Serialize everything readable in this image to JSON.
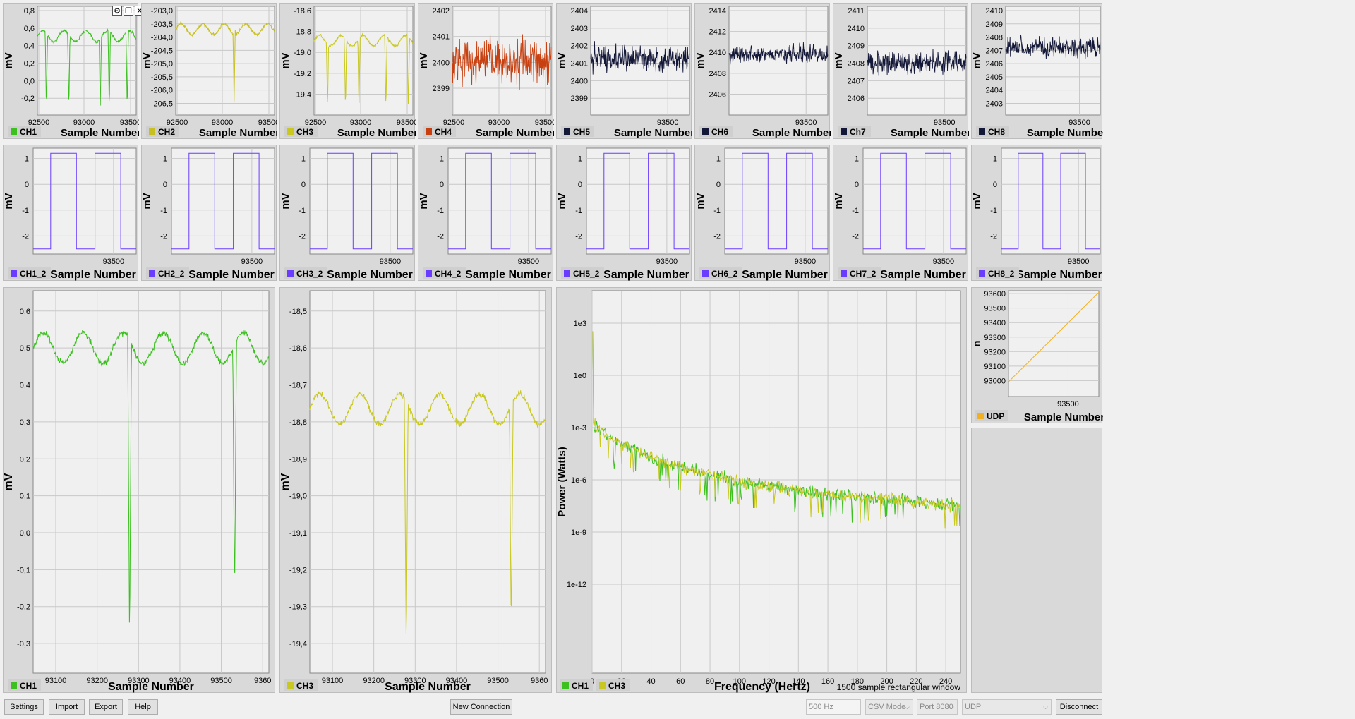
{
  "colors": {
    "CH1": "#3cc020",
    "CH2": "#c8c020",
    "CH3": "#c8c820",
    "CH4": "#c84010",
    "CH5": "#141838",
    "CH6": "#141838",
    "Ch7": "#141838",
    "CH8": "#141838",
    "square": "#6a3cff",
    "UDP": "#f0b020"
  },
  "ylabel_mv": "mV",
  "xlabel_sample": "Sample Number",
  "row1": [
    {
      "legend": "CH1",
      "yticks": [
        "0,8",
        "0,6",
        "0,4",
        "0,2",
        "0,0",
        "-0,2"
      ],
      "xticks": [
        "92500",
        "93000",
        "93500"
      ]
    },
    {
      "legend": "CH2",
      "yticks": [
        "-203,0",
        "-203,5",
        "-204,0",
        "-204,5",
        "-205,0",
        "-205,5",
        "-206,0",
        "-206,5"
      ],
      "xticks": [
        "92500",
        "93000",
        "93500"
      ]
    },
    {
      "legend": "CH3",
      "yticks": [
        "-18,6",
        "-18,8",
        "-19,0",
        "-19,2",
        "-19,4"
      ],
      "xticks": [
        "92500",
        "93000",
        "93500"
      ]
    },
    {
      "legend": "CH4",
      "yticks": [
        "2402",
        "2401",
        "2400",
        "2399"
      ],
      "xticks": [
        "92500",
        "93000",
        "93500"
      ]
    },
    {
      "legend": "CH5",
      "yticks": [
        "2404",
        "2403",
        "2402",
        "2401",
        "2400",
        "2399"
      ],
      "xticks": [
        "93500"
      ]
    },
    {
      "legend": "CH6",
      "yticks": [
        "2414",
        "2412",
        "2410",
        "2408",
        "2406"
      ],
      "xticks": [
        "93500"
      ]
    },
    {
      "legend": "Ch7",
      "yticks": [
        "2411",
        "2410",
        "2409",
        "2408",
        "2407",
        "2406"
      ],
      "xticks": [
        "93500"
      ]
    },
    {
      "legend": "CH8",
      "yticks": [
        "2410",
        "2409",
        "2408",
        "2407",
        "2406",
        "2405",
        "2404",
        "2403"
      ],
      "xticks": [
        "93500"
      ]
    }
  ],
  "row2": [
    {
      "legend": "CH1_2",
      "yticks": [
        "1",
        "0",
        "-1",
        "-2"
      ],
      "xticks": [
        "93500"
      ]
    },
    {
      "legend": "CH2_2",
      "yticks": [
        "1",
        "0",
        "-1",
        "-2"
      ],
      "xticks": [
        "93500"
      ]
    },
    {
      "legend": "CH3_2",
      "yticks": [
        "1",
        "0",
        "-1",
        "-2"
      ],
      "xticks": [
        "93500"
      ]
    },
    {
      "legend": "CH4_2",
      "yticks": [
        "1",
        "0",
        "-1",
        "-2"
      ],
      "xticks": [
        "93500"
      ]
    },
    {
      "legend": "CH5_2",
      "yticks": [
        "1",
        "0",
        "-1",
        "-2"
      ],
      "xticks": [
        "93500"
      ]
    },
    {
      "legend": "CH6_2",
      "yticks": [
        "1",
        "0",
        "-1",
        "-2"
      ],
      "xticks": [
        "93500"
      ]
    },
    {
      "legend": "CH7_2",
      "yticks": [
        "1",
        "0",
        "-1",
        "-2"
      ],
      "xticks": [
        "93500"
      ]
    },
    {
      "legend": "CH8_2",
      "yticks": [
        "1",
        "0",
        "-1",
        "-2"
      ],
      "xticks": [
        "93500"
      ]
    }
  ],
  "big_ch1": {
    "legend": "CH1",
    "yticks": [
      "0,6",
      "0,5",
      "0,4",
      "0,3",
      "0,2",
      "0,1",
      "0,0",
      "-0,1",
      "-0,2",
      "-0,3"
    ],
    "xticks": [
      "93100",
      "93200",
      "93300",
      "93400",
      "93500",
      "9360"
    ]
  },
  "big_ch3": {
    "legend": "CH3",
    "yticks": [
      "-18,5",
      "-18,6",
      "-18,7",
      "-18,8",
      "-18,9",
      "-19,0",
      "-19,1",
      "-19,2",
      "-19,3",
      "-19,4"
    ],
    "xticks": [
      "93100",
      "93200",
      "93300",
      "93400",
      "93500",
      "9360"
    ]
  },
  "fft": {
    "ylabel": "Power (Watts)",
    "xlabel": "Frequency (Hertz)",
    "yticks": [
      "1e3",
      "1e0",
      "1e-3",
      "1e-6",
      "1e-9",
      "1e-12"
    ],
    "xticks": [
      "0",
      "20",
      "40",
      "60",
      "80",
      "100",
      "120",
      "140",
      "160",
      "180",
      "200",
      "220",
      "240"
    ],
    "legend": [
      "CH1",
      "CH3"
    ],
    "note": "1500 sample rectangular window"
  },
  "udp_plot": {
    "legend": "UDP",
    "ylabel": "n",
    "yticks": [
      "93600",
      "93500",
      "93400",
      "93300",
      "93200",
      "93100",
      "93000"
    ],
    "xticks": [
      "93500"
    ]
  },
  "window_controls": {
    "gear": "⚙",
    "restore": "❐",
    "close": "✕"
  },
  "statusbar": {
    "settings": "Settings",
    "import": "Import",
    "export": "Export",
    "help": "Help",
    "new_connection": "New Connection",
    "sample_rate": "500 Hz",
    "mode": "CSV Mode",
    "port": "Port 8080",
    "protocol": "UDP",
    "disconnect": "Disconnect"
  },
  "chart_data": [
    {
      "type": "line",
      "legend": "CH1",
      "ylabel": "mV",
      "xlabel": "Sample Number",
      "xlim": [
        92500,
        93600
      ],
      "ylim": [
        -0.3,
        0.8
      ],
      "baseline": 0.5,
      "dips_x": [
        92600,
        92850,
        93200,
        93300,
        93500
      ],
      "dips_min": -0.25
    },
    {
      "type": "line",
      "legend": "CH2",
      "ylabel": "mV",
      "xlabel": "Sample Number",
      "xlim": [
        92500,
        93600
      ],
      "ylim": [
        -206.6,
        -202.8
      ],
      "baseline": -203.6,
      "dips_x": [
        93150
      ],
      "dips_min": -206.2
    },
    {
      "type": "line",
      "legend": "CH3",
      "ylabel": "mV",
      "xlabel": "Sample Number",
      "xlim": [
        92500,
        93600
      ],
      "ylim": [
        -19.45,
        -18.5
      ],
      "baseline": -18.8,
      "dips_x": [
        92650,
        92850,
        93000,
        93300,
        93550
      ],
      "dips_min": -19.4
    },
    {
      "type": "line",
      "legend": "CH4",
      "ylabel": "mV",
      "xlabel": "Sample Number",
      "xlim": [
        92500,
        93600
      ],
      "ylim": [
        2398.6,
        2402.6
      ],
      "baseline": 2400.6,
      "noise": 1.2
    },
    {
      "type": "line",
      "legend": "CH5",
      "ylabel": "mV",
      "xlabel": "Sample Number",
      "xlim": [
        92500,
        93600
      ],
      "ylim": [
        2398.6,
        2404.4
      ],
      "baseline": 2401.6,
      "noise": 1.0
    },
    {
      "type": "line",
      "legend": "CH6",
      "ylabel": "mV",
      "xlabel": "Sample Number",
      "xlim": [
        92500,
        93600
      ],
      "ylim": [
        2405,
        2414.6
      ],
      "baseline": 2410.4,
      "noise": 1.2
    },
    {
      "type": "line",
      "legend": "Ch7",
      "ylabel": "mV",
      "xlabel": "Sample Number",
      "xlim": [
        92500,
        93600
      ],
      "ylim": [
        2405.6,
        2411.4
      ],
      "baseline": 2408.4,
      "noise": 0.9
    },
    {
      "type": "line",
      "legend": "CH8",
      "ylabel": "mV",
      "xlabel": "Sample Number",
      "xlim": [
        92500,
        93600
      ],
      "ylim": [
        2402.8,
        2410.2
      ],
      "baseline": 2407.4,
      "noise": 1.0
    },
    {
      "type": "line",
      "legend": "CH1_2..CH8_2",
      "ylabel": "mV",
      "xlabel": "Sample Number",
      "shape": "square",
      "high": 1.2,
      "low": -2.5,
      "ylim": [
        -2.7,
        1.4
      ]
    },
    {
      "type": "line",
      "legend": "CH1",
      "ylabel": "mV",
      "xlabel": "Sample Number",
      "xlim": [
        93050,
        93600
      ],
      "ylim": [
        -0.35,
        0.65
      ],
      "baseline": 0.5,
      "dips": [
        {
          "x": 93275,
          "min": -0.28
        },
        {
          "x": 93520,
          "min": -0.17
        }
      ]
    },
    {
      "type": "line",
      "legend": "CH3",
      "ylabel": "mV",
      "xlabel": "Sample Number",
      "xlim": [
        93050,
        93600
      ],
      "ylim": [
        -19.45,
        -18.48
      ],
      "baseline": -18.78,
      "dips": [
        {
          "x": 93275,
          "min": -19.4
        },
        {
          "x": 93520,
          "min": -19.35
        }
      ]
    },
    {
      "type": "line",
      "legend": [
        "CH1",
        "CH3"
      ],
      "ylabel": "Power (Watts)",
      "xlabel": "Frequency (Hertz)",
      "xlim": [
        0,
        250
      ],
      "yscale": "log",
      "ylim": [
        "1e-13",
        "1e5"
      ]
    },
    {
      "type": "line",
      "legend": "UDP",
      "ylabel": "n",
      "xlabel": "Sample Number",
      "ylim": [
        92950,
        93600
      ],
      "points": [
        [
          0,
          93040
        ],
        [
          1,
          93590
        ]
      ]
    }
  ]
}
